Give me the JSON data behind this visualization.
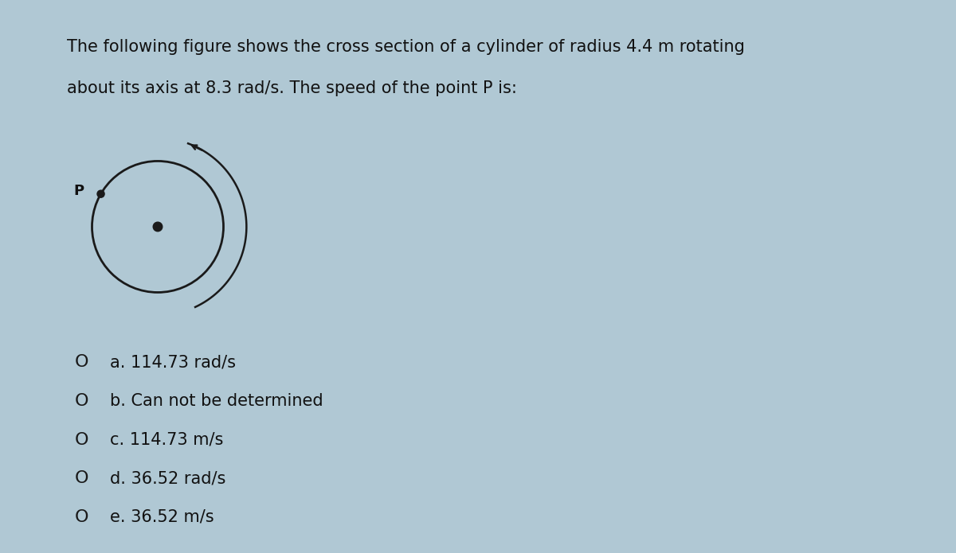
{
  "background_color": "#b0c8d4",
  "panel_color": "#f2e8d5",
  "title_text_line1": "The following figure shows the cross section of a cylinder of radius 4.4 m rotating",
  "title_text_line2": "about its axis at 8.3 rad/s. The speed of the point P is:",
  "title_fontsize": 15,
  "options": [
    "a. 114.73 rad/s",
    "b. Can not be determined",
    "c. 114.73 m/s",
    "d. 36.52 rad/s",
    "e. 36.52 m/s"
  ],
  "options_fontsize": 15,
  "circle_color": "#1a1a1a",
  "text_color": "#111111"
}
